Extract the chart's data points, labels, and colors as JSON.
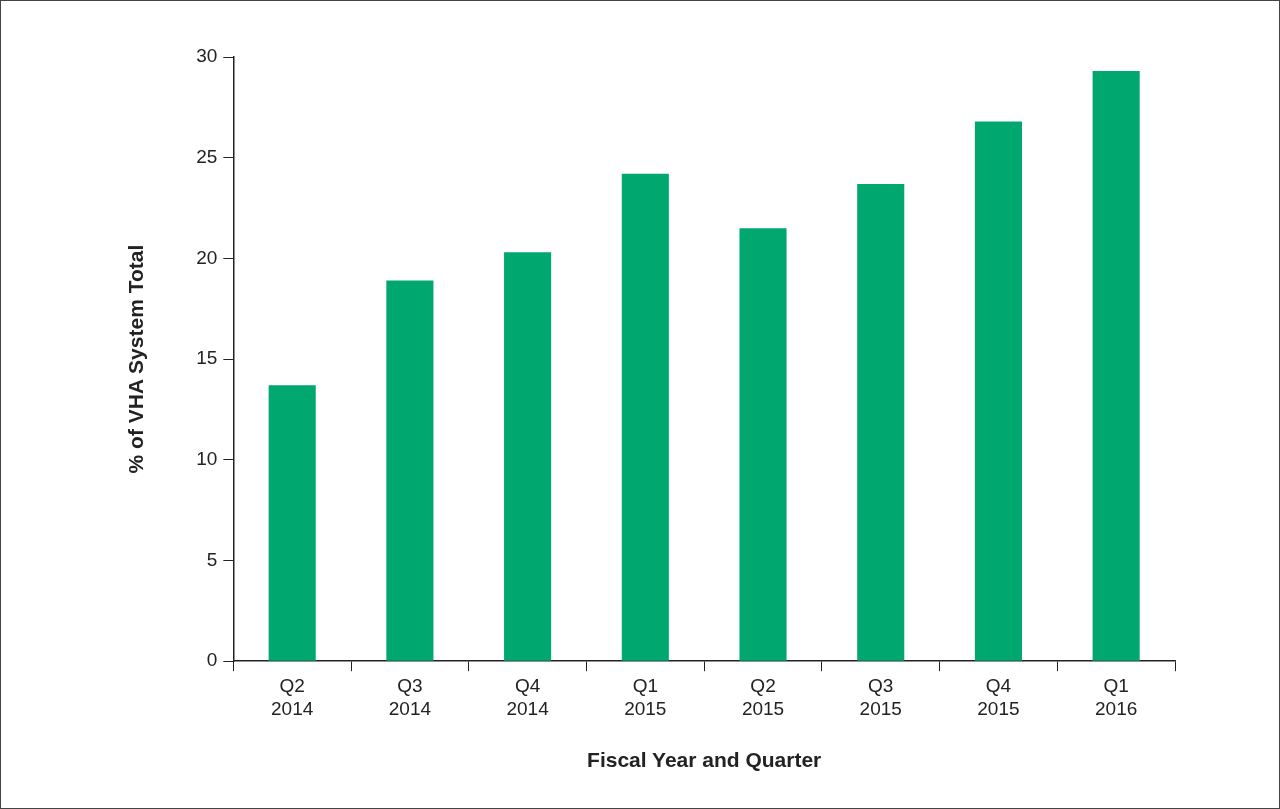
{
  "chart_data": {
    "type": "bar",
    "xlabel": "Fiscal Year and Quarter",
    "ylabel": "% of VHA System Total",
    "categories": [
      "Q2\n2014",
      "Q3\n2014",
      "Q4\n2014",
      "Q1\n2015",
      "Q2\n2015",
      "Q3\n2015",
      "Q4\n2015",
      "Q1\n2016"
    ],
    "values": [
      13.7,
      18.9,
      20.3,
      24.2,
      21.5,
      23.7,
      26.8,
      29.3
    ],
    "color": "#00a76f",
    "ylim": [
      0,
      30
    ],
    "yticks": [
      0,
      5,
      10,
      15,
      20,
      25,
      30
    ],
    "grid": false,
    "legend": false
  }
}
